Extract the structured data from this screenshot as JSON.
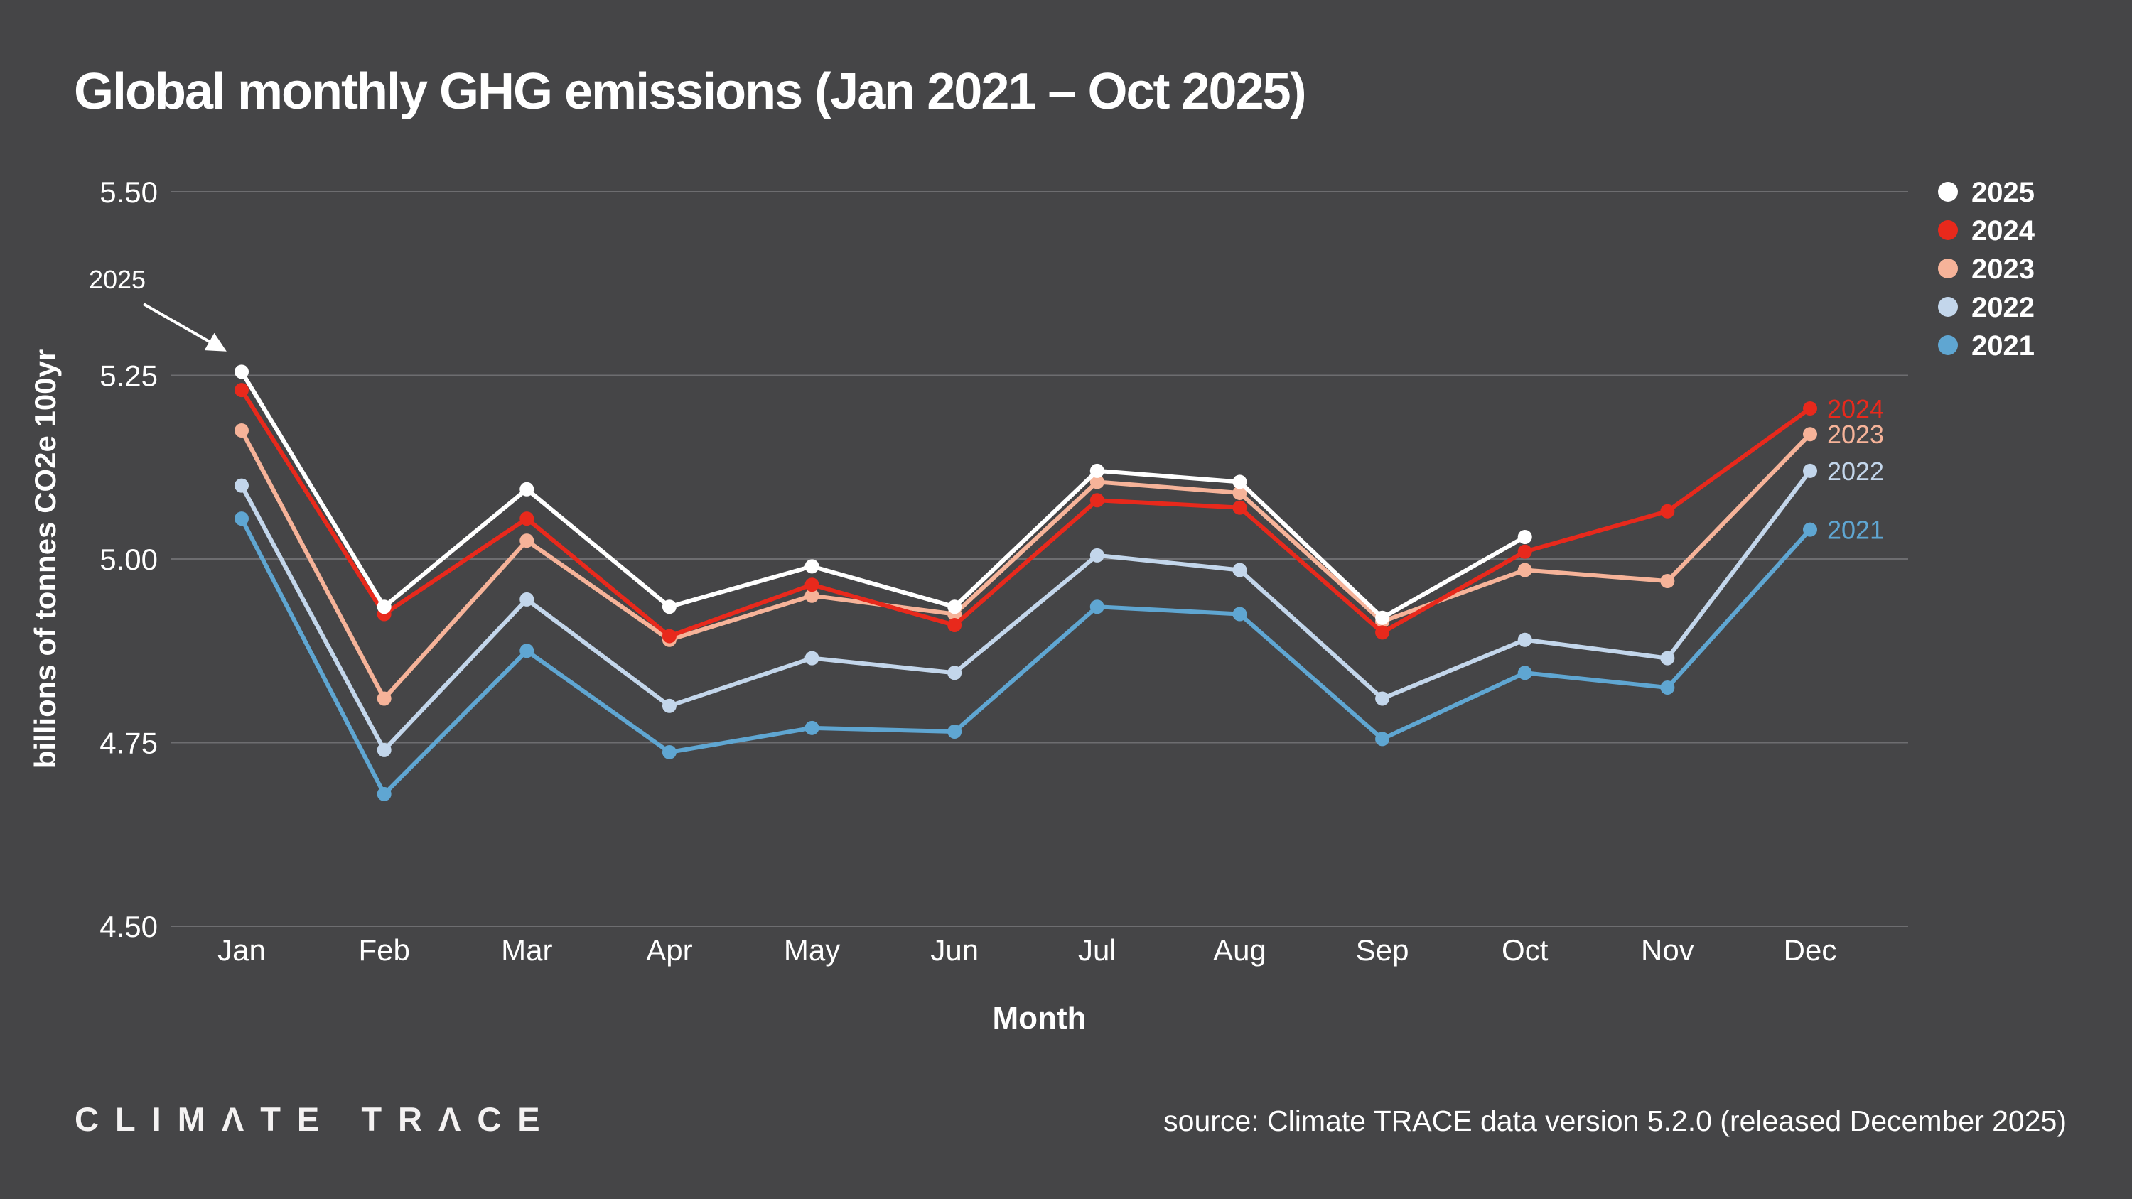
{
  "title": "Global monthly GHG emissions (Jan 2021 – Oct 2025)",
  "footer": {
    "wordmark": "CLIMATE TRACE",
    "wordmark_display": "CLIMΛTE TRΛCE",
    "source": "source: Climate TRACE data version 5.2.0 (released December 2025)"
  },
  "legend": {
    "position": "top-right",
    "items": [
      {
        "label": "2025",
        "color": "#ffffff"
      },
      {
        "label": "2024",
        "color": "#e8291c"
      },
      {
        "label": "2023",
        "color": "#f6b399"
      },
      {
        "label": "2022",
        "color": "#c3d6eb"
      },
      {
        "label": "2021",
        "color": "#5fa6d2"
      }
    ]
  },
  "chart_data": {
    "type": "line",
    "title": "Global monthly GHG emissions (Jan 2021 – Oct 2025)",
    "xlabel": "Month",
    "ylabel": "billions of tonnes CO2e 100yr",
    "categories": [
      "Jan",
      "Feb",
      "Mar",
      "Apr",
      "May",
      "Jun",
      "Jul",
      "Aug",
      "Sep",
      "Oct",
      "Nov",
      "Dec"
    ],
    "yticks": [
      5.5,
      5.25,
      5.0,
      4.75,
      4.5
    ],
    "ylim": [
      4.5,
      5.5
    ],
    "grid": true,
    "legend_position": "right",
    "series": [
      {
        "name": "2025",
        "color": "#ffffff",
        "values": [
          5.255,
          4.935,
          5.095,
          4.935,
          4.99,
          4.935,
          5.12,
          5.105,
          4.92,
          5.03,
          null,
          null
        ]
      },
      {
        "name": "2024",
        "color": "#e8291c",
        "values": [
          5.23,
          4.925,
          5.055,
          4.895,
          4.965,
          4.91,
          5.08,
          5.07,
          4.9,
          5.01,
          5.065,
          5.205
        ]
      },
      {
        "name": "2023",
        "color": "#f6b399",
        "values": [
          5.175,
          4.81,
          5.025,
          4.89,
          4.95,
          4.925,
          5.105,
          5.09,
          4.915,
          4.985,
          4.97,
          5.17
        ]
      },
      {
        "name": "2022",
        "color": "#c3d6eb",
        "values": [
          5.1,
          4.74,
          4.945,
          4.8,
          4.865,
          4.845,
          5.005,
          4.985,
          4.81,
          4.89,
          4.865,
          5.12
        ]
      },
      {
        "name": "2021",
        "color": "#5fa6d2",
        "values": [
          5.055,
          4.68,
          4.875,
          4.737,
          4.77,
          4.765,
          4.935,
          4.925,
          4.755,
          4.845,
          4.825,
          5.04
        ]
      }
    ],
    "end_labels": [
      "2024",
      "2023",
      "2022",
      "2021"
    ],
    "annotation": {
      "label": "2025",
      "points_to": "Jan 2025"
    }
  }
}
